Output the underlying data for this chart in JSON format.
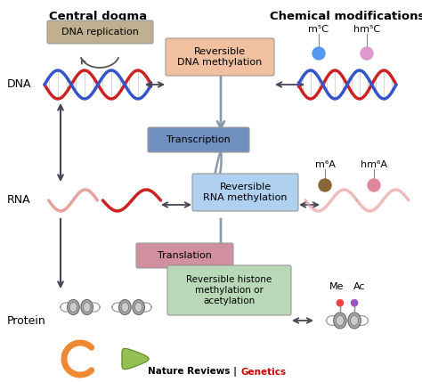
{
  "title_left": "Central dogma",
  "title_right": "Chemical modifications",
  "label_dna": "DNA",
  "label_rna": "RNA",
  "label_protein": "Protein",
  "box_dna_replication": "DNA replication",
  "box_transcription": "Transcription",
  "box_translation": "Translation",
  "box_rev_dna": "Reversible\nDNA methylation",
  "box_rev_rna": "Reversible\nRNA methylation",
  "box_rev_histone": "Reversible histone\nmethylation or\nacetylation",
  "label_m5c": "m⁵C",
  "label_hm5c": "hm⁵C",
  "label_m6a": "m⁶A",
  "label_hm6a": "hm⁶A",
  "label_me": "Me",
  "label_ac": "Ac",
  "footer_normal": "Nature Reviews | ",
  "footer_genetics": "Genetics",
  "bg_color": "#ffffff",
  "box_dna_rep_color": "#c0b090",
  "box_transcription_color": "#7090c0",
  "box_translation_color": "#d090a0",
  "box_rev_dna_color": "#f0c0a0",
  "box_rev_rna_color": "#b0d0f0",
  "box_rev_histone_color": "#b8d8b8",
  "arrow_gray": "#8899aa",
  "arrow_dark": "#444455",
  "dna_red": "#cc2222",
  "dna_blue": "#3355cc",
  "rna_red": "#cc2222",
  "rna_pink": "#e8a0a0",
  "m5c_color": "#5599ee",
  "hm5c_color": "#dd99cc",
  "m6a_color": "#886633",
  "hm6a_color": "#dd8899",
  "me_color": "#ee4444",
  "ac_color": "#9955bb",
  "nucl_color": "#aaaaaa",
  "nucl_edge": "#666666",
  "orange_color": "#ee8833",
  "green_color": "#88bb44"
}
